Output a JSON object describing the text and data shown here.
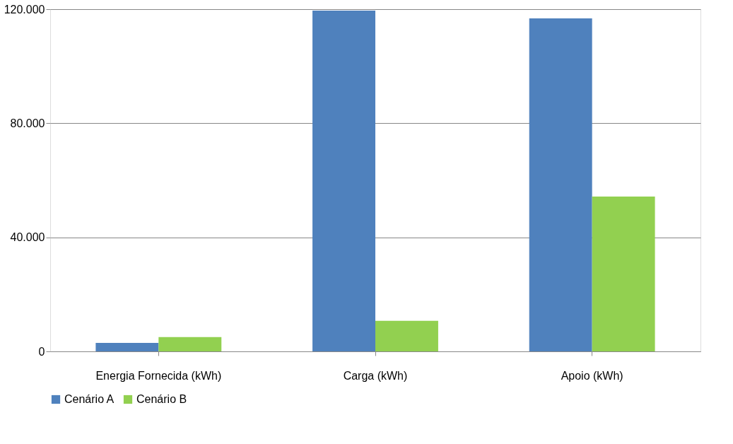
{
  "chart_data": {
    "type": "bar",
    "categories": [
      "Energia Fornecida (kWh)",
      "Carga (kWh)",
      "Apoio (kWh)"
    ],
    "series": [
      {
        "name": "Cenário A",
        "color": "#4f81bd",
        "values": [
          3000,
          119500,
          116800
        ]
      },
      {
        "name": "Cenário B",
        "color": "#92d050",
        "values": [
          5000,
          10700,
          54300
        ]
      }
    ],
    "ylim": [
      0,
      120000
    ],
    "yticks": [
      {
        "value": 0,
        "label": "0"
      },
      {
        "value": 40000,
        "label": "40.000"
      },
      {
        "value": 80000,
        "label": "80.000"
      },
      {
        "value": 120000,
        "label": "120.000"
      }
    ],
    "grid": "y",
    "legend": "bottom"
  }
}
